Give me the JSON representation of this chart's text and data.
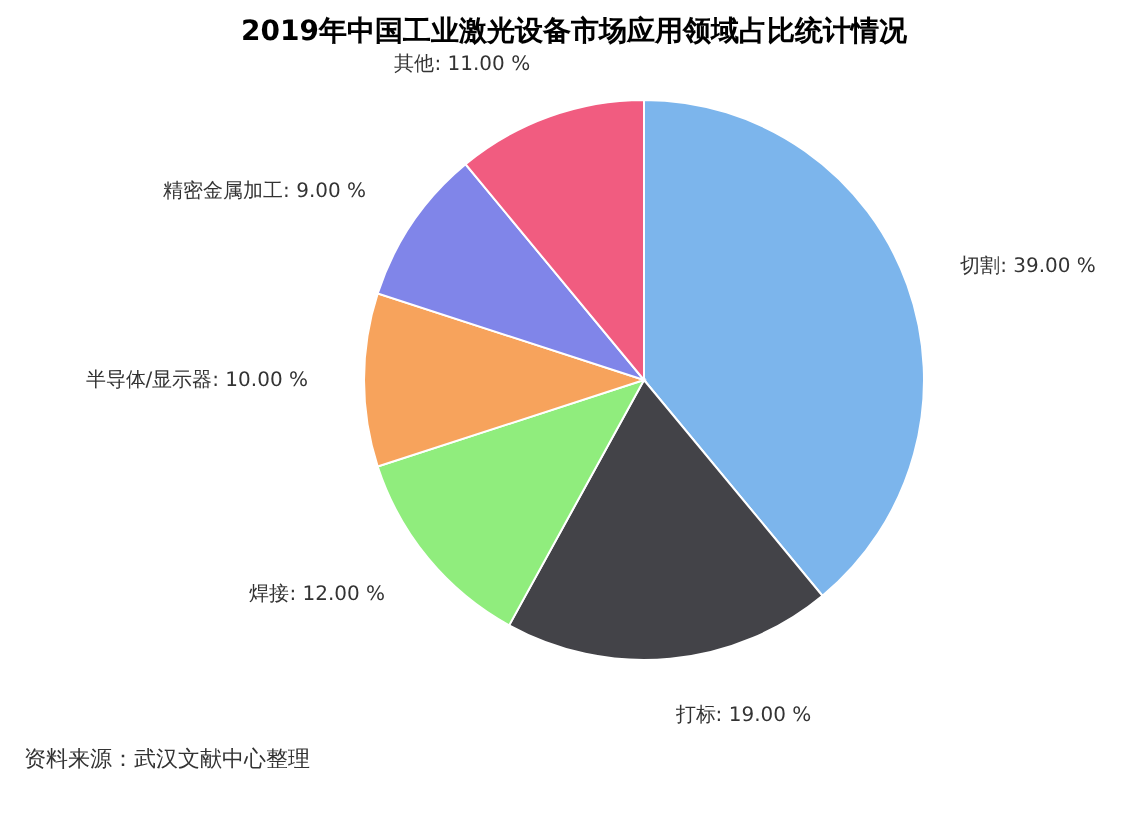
{
  "chart_data": {
    "type": "pie",
    "title": "2019年中国工业激光设备市场应用领域占比统计情况",
    "categories": [
      "切割",
      "打标",
      "焊接",
      "半导体/显示器",
      "精密金属加工",
      "其他"
    ],
    "values": [
      39,
      19,
      12,
      10,
      9,
      11
    ],
    "colors": [
      "#7cb5ec",
      "#434348",
      "#90ed7d",
      "#f7a35c",
      "#8085e9",
      "#f15c80"
    ],
    "value_labels": [
      "39.00 %",
      "19.00 %",
      "12.00 %",
      "10.00 %",
      "9.00 %",
      "11.00 %"
    ],
    "legend": false,
    "annotations": [
      "资料来源：武汉文献中心整理"
    ]
  }
}
